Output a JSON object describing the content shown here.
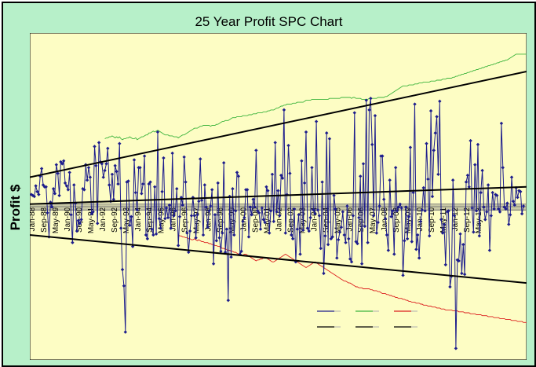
{
  "chart_data": {
    "type": "line",
    "title": "25 Year Profit SPC Chart",
    "ylabel": "Profit $",
    "xlabel": "",
    "x_tick_labels": [
      "Jan-88",
      "Sep-88",
      "May-89",
      "Jan-90",
      "Sep-90",
      "May-91",
      "Jan-92",
      "Sep-92",
      "May-93",
      "Jan-94",
      "Sep-94",
      "May-95",
      "Jan-96",
      "Sep-96",
      "May-97",
      "Jan-98",
      "Sep-98",
      "May-99",
      "Jan-00",
      "Sep-00",
      "May-01",
      "Jan-02",
      "Sep-02",
      "May-03",
      "Jan-04",
      "Sep-04",
      "May-05",
      "Jan-06",
      "Sep-06",
      "May-07",
      "Jan-08",
      "Sep-08",
      "May-09",
      "Jan-10",
      "Sep-10",
      "May-11",
      "Jan-12",
      "Sep-12",
      "May-13"
    ],
    "ylim": [
      -160,
      180
    ],
    "grid": false,
    "y_tick_labels_visible": false,
    "colors": {
      "plot_bg": "#fdfdc4",
      "outer_bg": "#b7f0c9",
      "profit": "#1c1c8c",
      "upper_limit": "#3cb43c",
      "lower_limit": "#dc1e1e",
      "trend": "#000000"
    },
    "trend_lines": {
      "upper_bound": {
        "start": 30,
        "end": 140
      },
      "center_trend": {
        "start": 2,
        "end": 20
      },
      "lower_bound": {
        "start": -30,
        "end": -80
      }
    },
    "series": [
      {
        "role": "profit",
        "values": [
          12,
          11,
          10,
          21,
          15,
          12,
          31,
          39,
          22,
          20,
          20,
          -7,
          -32,
          4,
          -1,
          18,
          13,
          43,
          34,
          11,
          46,
          44,
          47,
          24,
          21,
          17,
          35,
          -9,
          -38,
          22,
          3,
          -26,
          -15,
          -18,
          -14,
          18,
          17,
          43,
          27,
          40,
          30,
          -8,
          -6,
          62,
          42,
          -18,
          66,
          46,
          44,
          30,
          37,
          44,
          60,
          22,
          5,
          33,
          7,
          42,
          36,
          23,
          65,
          -23,
          -66,
          -83,
          -131,
          25,
          26,
          -20,
          -11,
          -42,
          48,
          14,
          -4,
          40,
          40,
          13,
          23,
          52,
          -30,
          -34,
          23,
          25,
          -24,
          -30,
          20,
          -29,
          77,
          -13,
          -23,
          15,
          50,
          -13,
          -2,
          -12,
          1,
          -23,
          55,
          -10,
          -5,
          18,
          -41,
          -11,
          9,
          1,
          51,
          25,
          -28,
          -48,
          -26,
          -10,
          9,
          -10,
          -33,
          -9,
          5,
          49,
          6,
          -30,
          22,
          -1,
          -22,
          -5,
          0,
          17,
          -60,
          -9,
          -36,
          24,
          -33,
          -47,
          -28,
          45,
          -48,
          -24,
          -98,
          10,
          -53,
          18,
          -30,
          -5,
          35,
          31,
          -50,
          -47,
          -16,
          -12,
          17,
          17,
          -32,
          -1,
          -9,
          7,
          -1,
          58,
          -5,
          -7,
          -24,
          -2,
          -14,
          -17,
          20,
          16,
          -28,
          -5,
          33,
          -16,
          66,
          -6,
          16,
          -10,
          32,
          29,
          100,
          -28,
          12,
          63,
          34,
          -30,
          -34,
          -3,
          -58,
          -24,
          -9,
          -50,
          47,
          -25,
          24,
          77,
          -23,
          -26,
          -12,
          40,
          -4,
          -8,
          88,
          -4,
          -10,
          -44,
          25,
          -70,
          -31,
          76,
          -40,
          70,
          -34,
          -32,
          11,
          -3,
          -54,
          -35,
          -27,
          -22,
          -6,
          -30,
          -38,
          0,
          -34,
          -55,
          -58,
          -10,
          97,
          -37,
          -39,
          -12,
          31,
          -60,
          44,
          -21,
          110,
          -38,
          100,
          112,
          64,
          -10,
          94,
          -28,
          -17,
          0,
          52,
          52,
          7,
          -13,
          -30,
          -46,
          27,
          -11,
          -5,
          -50,
          40,
          -5,
          -1,
          2,
          -2,
          -72,
          -36,
          -1,
          -34,
          -11,
          61,
          -37,
          14,
          106,
          -45,
          -30,
          -54,
          -16,
          -4,
          19,
          -5,
          65,
          28,
          -31,
          99,
          10,
          58,
          76,
          93,
          33,
          109,
          -14,
          -28,
          -19,
          -61,
          -6,
          -5,
          -84,
          -73,
          27,
          -10,
          -148,
          -56,
          -57,
          -29,
          -70,
          -40,
          -71,
          25,
          32,
          20,
          68,
          -2,
          -27,
          43,
          -5,
          64,
          -31,
          14,
          37,
          -1,
          -14,
          -6,
          22,
          -46,
          -10,
          14,
          -3,
          12,
          11,
          -3,
          -6,
          86,
          40,
          -1,
          -3,
          3,
          -19,
          -9,
          30,
          5,
          1,
          19,
          9,
          16,
          15,
          -8,
          0
        ]
      },
      {
        "role": "upper_limit",
        "start_index": 50,
        "values": [
          70,
          71,
          71,
          72,
          72,
          73,
          72,
          71,
          72,
          71,
          72,
          70,
          69,
          70,
          70,
          71,
          71,
          72,
          71,
          70,
          70,
          71,
          69,
          70,
          71,
          72,
          72,
          73,
          74,
          74,
          76,
          76,
          77,
          78,
          77,
          78,
          79,
          78,
          77,
          76,
          75,
          74,
          74,
          74,
          73,
          73,
          73,
          72,
          72,
          72,
          71,
          72,
          73,
          74,
          74,
          75,
          76,
          77,
          78,
          79,
          80,
          81,
          81,
          81,
          82,
          83,
          83,
          84,
          84,
          84,
          84,
          84,
          83,
          84,
          84,
          84,
          85,
          85,
          86,
          87,
          88,
          88,
          89,
          89,
          89,
          90,
          91,
          92,
          92,
          92,
          93,
          93,
          93,
          93,
          94,
          94,
          94,
          94,
          95,
          95,
          95,
          96,
          96,
          96,
          97,
          97,
          97,
          97,
          98,
          98,
          98,
          99,
          99,
          100,
          100,
          100,
          101,
          102,
          102,
          103,
          104,
          104,
          105,
          105,
          106,
          106,
          106,
          106,
          107,
          107,
          107,
          108,
          108,
          108,
          108,
          108,
          109,
          110,
          110,
          110,
          110,
          111,
          111,
          111,
          111,
          111,
          111,
          111,
          111,
          111,
          111,
          111,
          111,
          112,
          112,
          112,
          112,
          112,
          112,
          112,
          112,
          113,
          113,
          113,
          113,
          113,
          113,
          113,
          112,
          113,
          113,
          112,
          112,
          112,
          112,
          111,
          111,
          111,
          111,
          111,
          112,
          112,
          112,
          112,
          112,
          112,
          113,
          113,
          113,
          113,
          113,
          114,
          114,
          115,
          116,
          117,
          118,
          119,
          120,
          121,
          122,
          123,
          124,
          125,
          125,
          125,
          125,
          126,
          126,
          126,
          126,
          127,
          127,
          127,
          128,
          128,
          128,
          129,
          129,
          129,
          129,
          129,
          130,
          130,
          130,
          130,
          131,
          131,
          131,
          131,
          132,
          132,
          132,
          133,
          133,
          133,
          133,
          134,
          134,
          135,
          135,
          136,
          136,
          137,
          137,
          138,
          138,
          139,
          139,
          140,
          140,
          141,
          141,
          142,
          142,
          143,
          143,
          144,
          144,
          145,
          145,
          146,
          146,
          147,
          147,
          148,
          148,
          149,
          149,
          150,
          150,
          151,
          151,
          152,
          152,
          153,
          154,
          155,
          156,
          157,
          158,
          158,
          158,
          158,
          158,
          158,
          158,
          158,
          158,
          158,
          157,
          157,
          156,
          155,
          154,
          152,
          151,
          149,
          148,
          146,
          145,
          144,
          144
        ]
      },
      {
        "role": "lower_limit",
        "start_index": 100,
        "values": [
          -30,
          -31,
          -31,
          -32,
          -32,
          -33,
          -33,
          -34,
          -34,
          -35,
          -35,
          -34,
          -35,
          -36,
          -35,
          -36,
          -37,
          -37,
          -38,
          -38,
          -38,
          -39,
          -39,
          -40,
          -40,
          -41,
          -41,
          -42,
          -42,
          -43,
          -44,
          -44,
          -45,
          -45,
          -46,
          -46,
          -47,
          -47,
          -48,
          -48,
          -49,
          -50,
          -50,
          -51,
          -51,
          -50,
          -50,
          -51,
          -52,
          -53,
          -54,
          -55,
          -56,
          -57,
          -56,
          -56,
          -55,
          -55,
          -54,
          -54,
          -54,
          -55,
          -56,
          -57,
          -58,
          -58,
          -57,
          -56,
          -55,
          -54,
          -53,
          -52,
          -51,
          -50,
          -51,
          -52,
          -53,
          -54,
          -55,
          -56,
          -57,
          -58,
          -59,
          -60,
          -61,
          -62,
          -63,
          -64,
          -63,
          -62,
          -61,
          -60,
          -59,
          -58,
          -59,
          -60,
          -61,
          -62,
          -63,
          -64,
          -65,
          -66,
          -67,
          -68,
          -69,
          -70,
          -71,
          -72,
          -73,
          -74,
          -75,
          -76,
          -77,
          -78,
          -78,
          -79,
          -80,
          -80,
          -81,
          -82,
          -83,
          -84,
          -84,
          -85,
          -85,
          -85,
          -86,
          -86,
          -86,
          -86,
          -86,
          -87,
          -87,
          -88,
          -88,
          -88,
          -89,
          -89,
          -90,
          -91,
          -91,
          -91,
          -92,
          -92,
          -93,
          -93,
          -94,
          -94,
          -95,
          -95,
          -96,
          -96,
          -96,
          -97,
          -97,
          -98,
          -98,
          -99,
          -99,
          -100,
          -100,
          -100,
          -101,
          -101,
          -101,
          -102,
          -102,
          -103,
          -103,
          -103,
          -104,
          -104,
          -104,
          -105,
          -105,
          -105,
          -106,
          -106,
          -106,
          -107,
          -107,
          -107,
          -108,
          -108,
          -108,
          -108,
          -108,
          -109,
          -109,
          -109,
          -109,
          -110,
          -110,
          -110,
          -110,
          -111,
          -111,
          -111,
          -111,
          -112,
          -112,
          -112,
          -112,
          -113,
          -113,
          -113,
          -113,
          -114,
          -114,
          -114,
          -114,
          -115,
          -115,
          -115,
          -115,
          -116,
          -116,
          -116,
          -116,
          -117,
          -117,
          -117,
          -117,
          -118,
          -118,
          -118,
          -118,
          -119,
          -119,
          -119,
          -119,
          -120,
          -120,
          -120,
          -120,
          -121,
          -121,
          -121,
          -121,
          -122,
          -122,
          -122,
          -122,
          -123,
          -123,
          -123,
          -123,
          -124,
          -124,
          -124,
          -124,
          -125,
          -125,
          -125,
          -125,
          -126,
          -126,
          -126,
          -126,
          -127,
          -127,
          -127,
          -127,
          -128,
          -128,
          -128,
          -128,
          -129,
          -129,
          -129,
          -129,
          -130,
          -130,
          -130,
          -130,
          -131,
          -131,
          -131,
          -131,
          -132,
          -132,
          -132,
          -132,
          -133,
          -133,
          -133,
          -133,
          -134,
          -134,
          -134,
          -134,
          -135,
          -135,
          -135,
          -135,
          -136
        ]
      },
      {
        "role": "center_band",
        "values": [
          -2,
          -4,
          0,
          2
        ]
      }
    ],
    "legend": {
      "placement": "bottom-right",
      "entries": [
        {
          "color": "#1c1c8c",
          "label": ""
        },
        {
          "color": "#3cb43c",
          "label": ""
        },
        {
          "color": "#dc1e1e",
          "label": ""
        },
        {
          "color": "#000000",
          "label": ""
        },
        {
          "color": "#000000",
          "label": ""
        },
        {
          "color": "#000000",
          "label": ""
        }
      ]
    }
  }
}
